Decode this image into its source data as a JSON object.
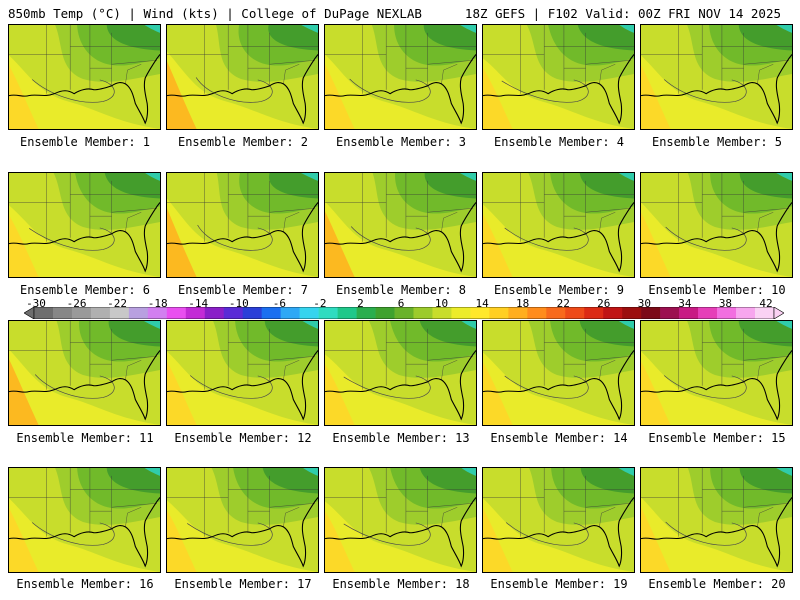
{
  "header": {
    "left": "850mb Temp (°C) | Wind (kts) | College of DuPage NEXLAB",
    "right": "18Z GEFS | F102 Valid: 00Z FRI NOV 14 2025"
  },
  "members": [
    {
      "label": "Ensemble Member: 1",
      "warmth": 0.45
    },
    {
      "label": "Ensemble Member: 2",
      "warmth": 0.65
    },
    {
      "label": "Ensemble Member: 3",
      "warmth": 0.5
    },
    {
      "label": "Ensemble Member: 4",
      "warmth": 0.3
    },
    {
      "label": "Ensemble Member: 5",
      "warmth": 0.45
    },
    {
      "label": "Ensemble Member: 6",
      "warmth": 0.35
    },
    {
      "label": "Ensemble Member: 7",
      "warmth": 0.7
    },
    {
      "label": "Ensemble Member: 8",
      "warmth": 0.55
    },
    {
      "label": "Ensemble Member: 9",
      "warmth": 0.4
    },
    {
      "label": "Ensemble Member: 10",
      "warmth": 0.5
    },
    {
      "label": "Ensemble Member: 11",
      "warmth": 0.55
    },
    {
      "label": "Ensemble Member: 12",
      "warmth": 0.45
    },
    {
      "label": "Ensemble Member: 13",
      "warmth": 0.3
    },
    {
      "label": "Ensemble Member: 14",
      "warmth": 0.4
    },
    {
      "label": "Ensemble Member: 15",
      "warmth": 0.45
    },
    {
      "label": "Ensemble Member: 16",
      "warmth": 0.45
    },
    {
      "label": "Ensemble Member: 17",
      "warmth": 0.35
    },
    {
      "label": "Ensemble Member: 18",
      "warmth": 0.3
    },
    {
      "label": "Ensemble Member: 19",
      "warmth": 0.45
    },
    {
      "label": "Ensemble Member: 20",
      "warmth": 0.5
    }
  ],
  "colorbar": {
    "ticks": [
      "-30",
      "-26",
      "-22",
      "-18",
      "-14",
      "-10",
      "-6",
      "-2",
      "2",
      "6",
      "10",
      "14",
      "18",
      "22",
      "26",
      "30",
      "34",
      "38",
      "42"
    ],
    "colors": [
      "#6e6e6e",
      "#878787",
      "#9a9a9a",
      "#b0b0b0",
      "#c8c8c8",
      "#b8a0e0",
      "#d27ff0",
      "#e94ff0",
      "#c32bd6",
      "#8a1fc8",
      "#5a2bd6",
      "#2a3fd8",
      "#1b6ff0",
      "#2ea8f5",
      "#35d4ee",
      "#2fdcc0",
      "#1fc88a",
      "#2aae4e",
      "#3fa22e",
      "#69b22a",
      "#9ccb2c",
      "#c8dd2c",
      "#ecec2a",
      "#ffe82a",
      "#ffcf22",
      "#ffae1e",
      "#ff8c1c",
      "#f86a1c",
      "#ee4a18",
      "#dc2a14",
      "#c01414",
      "#9c0e0e",
      "#7c0a18",
      "#9c1050",
      "#c81a84",
      "#e63eb8",
      "#f26ee0",
      "#f7a6ee",
      "#fad2f4"
    ]
  },
  "palette": {
    "dark_green": "#3f9a2c",
    "green": "#6fb82a",
    "light_green": "#9ccb2c",
    "yellow_green": "#c8dd2c",
    "yellow": "#ecec2a",
    "gold": "#ffd628",
    "orange": "#ffb01e",
    "teal": "#2fd2b8",
    "state_lines": "#3a3a3a"
  }
}
